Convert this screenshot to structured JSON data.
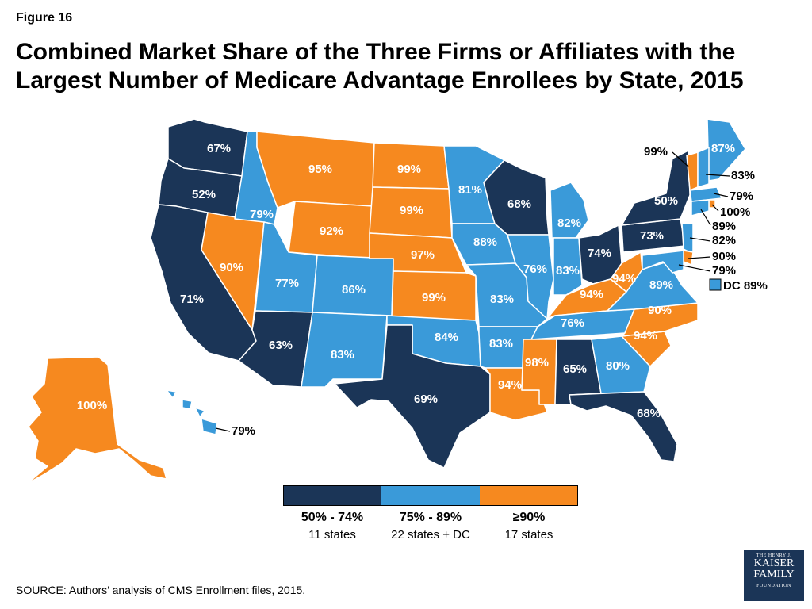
{
  "figure_label": "Figure 16",
  "title": "Combined Market Share of the Three Firms or Affiliates with the Largest Number of Medicare Advantage Enrollees by State, 2015",
  "colors": {
    "dark": "#1b3557",
    "mid": "#3a9ad9",
    "orange": "#f6891f",
    "white": "#ffffff"
  },
  "map": {
    "states": [
      {
        "code": "WA",
        "value": "67%"
      },
      {
        "code": "OR",
        "value": "52%"
      },
      {
        "code": "CA",
        "value": "71%"
      },
      {
        "code": "NV",
        "value": "90%"
      },
      {
        "code": "ID",
        "value": "79%"
      },
      {
        "code": "MT",
        "value": "95%"
      },
      {
        "code": "WY",
        "value": "92%"
      },
      {
        "code": "UT",
        "value": "77%"
      },
      {
        "code": "AZ",
        "value": "63%"
      },
      {
        "code": "CO",
        "value": "86%"
      },
      {
        "code": "NM",
        "value": "83%"
      },
      {
        "code": "ND",
        "value": "99%"
      },
      {
        "code": "SD",
        "value": "99%"
      },
      {
        "code": "NE",
        "value": "97%"
      },
      {
        "code": "KS",
        "value": "99%"
      },
      {
        "code": "OK",
        "value": "84%"
      },
      {
        "code": "TX",
        "value": "69%"
      },
      {
        "code": "MN",
        "value": "81%"
      },
      {
        "code": "IA",
        "value": "88%"
      },
      {
        "code": "MO",
        "value": "83%"
      },
      {
        "code": "AR",
        "value": "83%"
      },
      {
        "code": "LA",
        "value": "94%"
      },
      {
        "code": "WI",
        "value": "68%"
      },
      {
        "code": "IL",
        "value": "76%"
      },
      {
        "code": "MI",
        "value": "82%"
      },
      {
        "code": "IN",
        "value": "83%"
      },
      {
        "code": "OH",
        "value": "74%"
      },
      {
        "code": "KY",
        "value": "94%"
      },
      {
        "code": "TN",
        "value": "76%"
      },
      {
        "code": "MS",
        "value": "98%"
      },
      {
        "code": "AL",
        "value": "65%"
      },
      {
        "code": "GA",
        "value": "80%"
      },
      {
        "code": "FL",
        "value": "68%"
      },
      {
        "code": "SC",
        "value": "94%"
      },
      {
        "code": "NC",
        "value": "90%"
      },
      {
        "code": "VA",
        "value": "89%"
      },
      {
        "code": "WV",
        "value": "94%"
      },
      {
        "code": "PA",
        "value": "73%"
      },
      {
        "code": "NY",
        "value": "50%"
      },
      {
        "code": "ME",
        "value": "87%"
      },
      {
        "code": "AK",
        "value": "100%"
      },
      {
        "code": "HI",
        "value": "79%"
      }
    ],
    "callouts": [
      {
        "code": "VT",
        "value": "99%"
      },
      {
        "code": "NH",
        "value": "83%"
      },
      {
        "code": "MA",
        "value": "79%"
      },
      {
        "code": "RI",
        "value": "100%"
      },
      {
        "code": "CT",
        "value": "89%"
      },
      {
        "code": "NJ",
        "value": "82%"
      },
      {
        "code": "DE",
        "value": "90%"
      },
      {
        "code": "MD",
        "value": "79%"
      }
    ],
    "dc": "DC 89%"
  },
  "legend": [
    {
      "range": "50% - 74%",
      "count": "11 states",
      "color": "#1b3557"
    },
    {
      "range": "75% - 89%",
      "count": "22 states + DC",
      "color": "#3a9ad9"
    },
    {
      "range": "≥90%",
      "count": "17 states",
      "color": "#f6891f"
    }
  ],
  "source": "SOURCE:  Authors’ analysis of CMS Enrollment files, 2015.",
  "logo": {
    "line1": "THE HENRY J.",
    "line2": "KAISER",
    "line3": "FAMILY",
    "line4": "FOUNDATION"
  }
}
